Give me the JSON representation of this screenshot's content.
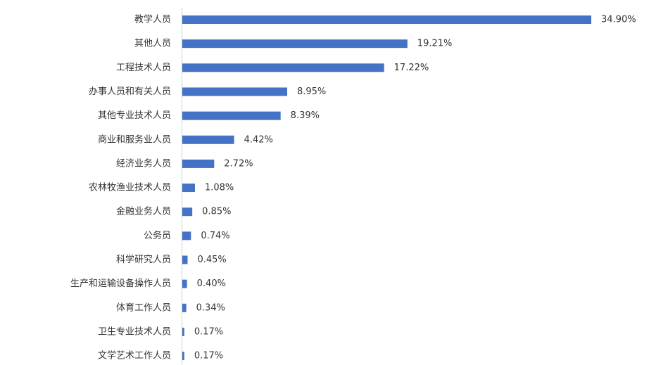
{
  "chart_data": {
    "type": "bar",
    "orientation": "horizontal",
    "color": "#4472c4",
    "categories": [
      "教学人员",
      "其他人员",
      "工程技术人员",
      "办事人员和有关人员",
      "其他专业技术人员",
      "商业和服务业人员",
      "经济业务人员",
      "农林牧渔业技术人员",
      "金融业务人员",
      "公务员",
      "科学研究人员",
      "生产和运输设备操作人员",
      "体育工作人员",
      "卫生专业技术人员",
      "文学艺术工作人员"
    ],
    "values": [
      34.9,
      19.21,
      17.22,
      8.95,
      8.39,
      4.42,
      2.72,
      1.08,
      0.85,
      0.74,
      0.45,
      0.4,
      0.34,
      0.17,
      0.17
    ],
    "value_labels": [
      "34.90%",
      "19.21%",
      "17.22%",
      "8.95%",
      "8.39%",
      "4.42%",
      "2.72%",
      "1.08%",
      "0.85%",
      "0.74%",
      "0.45%",
      "0.40%",
      "0.34%",
      "0.17%",
      "0.17%"
    ]
  }
}
